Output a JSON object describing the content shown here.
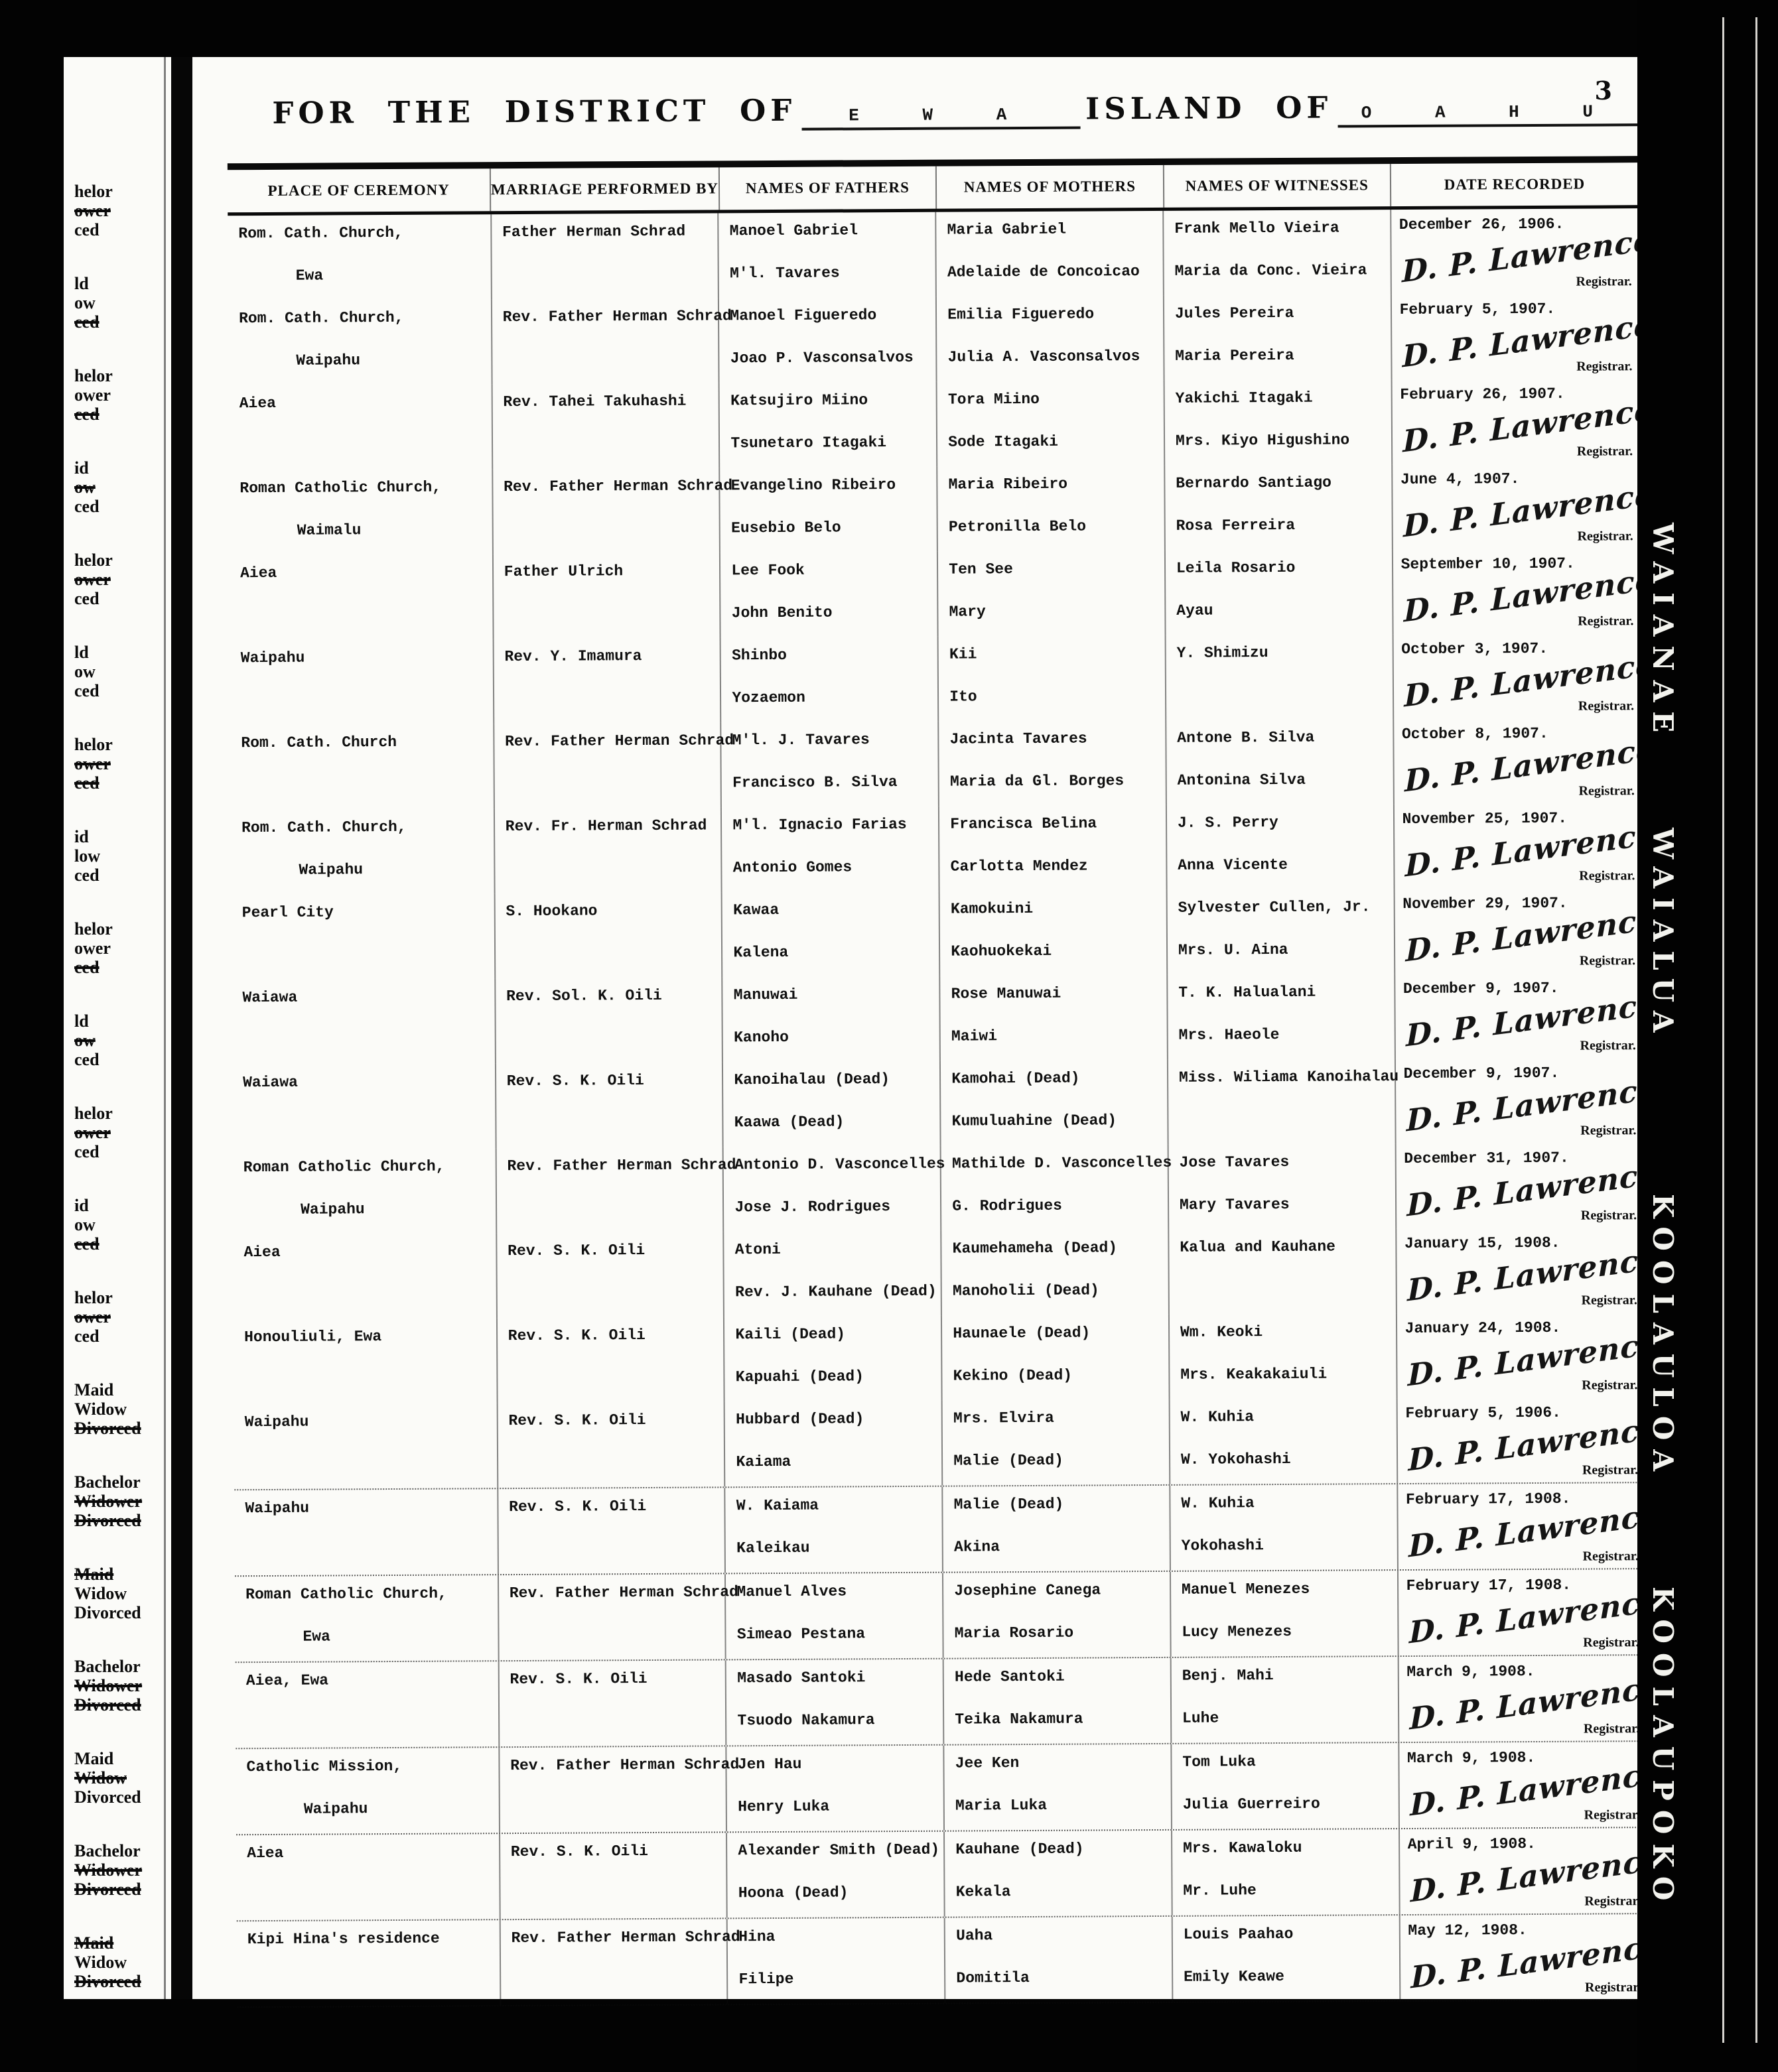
{
  "page": {
    "title_prefix": "FOR THE DISTRICT OF",
    "district": "E W A",
    "title_middle": "ISLAND OF",
    "island": "O A H U",
    "number": "3"
  },
  "signature": {
    "name": "D. P. Lawrence",
    "title": "Registrar."
  },
  "table": {
    "columns": [
      "PLACE OF CEREMONY",
      "MARRIAGE PERFORMED BY",
      "NAMES OF FATHERS",
      "NAMES OF MOTHERS",
      "NAMES OF WITNESSES",
      "DATE RECORDED"
    ],
    "rows": [
      {
        "place1": "Rom. Cath. Church,",
        "place2": "Ewa",
        "performer": "Father Herman Schrad",
        "father1": "Manoel Gabriel",
        "father2": "M'l. Tavares",
        "mother1": "Maria Gabriel",
        "mother2": "Adelaide de Concoicao",
        "witness1": "Frank Mello Vieira",
        "witness2": "Maria da Conc. Vieira",
        "date": "December 26, 1906.",
        "dotted": false
      },
      {
        "place1": "Rom. Cath. Church,",
        "place2": "Waipahu",
        "performer": "Rev. Father Herman Schrad",
        "father1": "Manoel Figueredo",
        "father2": "Joao P. Vasconsalvos",
        "mother1": "Emilia Figueredo",
        "mother2": "Julia A. Vasconsalvos",
        "witness1": "Jules Pereira",
        "witness2": "Maria Pereira",
        "date": "February 5, 1907.",
        "dotted": false
      },
      {
        "place1": "Aiea",
        "place2": "",
        "performer": "Rev. Tahei Takuhashi",
        "father1": "Katsujiro Miino",
        "father2": "Tsunetaro Itagaki",
        "mother1": "Tora Miino",
        "mother2": "Sode Itagaki",
        "witness1": "Yakichi Itagaki",
        "witness2": "Mrs. Kiyo Higushino",
        "date": "February 26, 1907.",
        "dotted": false
      },
      {
        "place1": "Roman Catholic Church,",
        "place2": "Waimalu",
        "performer": "Rev. Father Herman Schrad",
        "father1": "Evangelino Ribeiro",
        "father2": "Eusebio Belo",
        "mother1": "Maria Ribeiro",
        "mother2": "Petronilla Belo",
        "witness1": "Bernardo Santiago",
        "witness2": "Rosa Ferreira",
        "date": "June 4, 1907.",
        "dotted": false
      },
      {
        "place1": "Aiea",
        "place2": "",
        "performer": "Father Ulrich",
        "father1": "Lee Fook",
        "father2": "John Benito",
        "mother1": "Ten See",
        "mother2": "Mary",
        "witness1": "Leila Rosario",
        "witness2": "Ayau",
        "date": "September 10, 1907.",
        "dotted": false
      },
      {
        "place1": "Waipahu",
        "place2": "",
        "performer": "Rev. Y. Imamura",
        "father1": "Shinbo",
        "father2": "Yozaemon",
        "mother1": "Kii",
        "mother2": "Ito",
        "witness1": "Y. Shimizu",
        "witness2": "",
        "date": "October 3, 1907.",
        "dotted": false
      },
      {
        "place1": "Rom. Cath. Church",
        "place2": "",
        "performer": "Rev. Father Herman Schrad",
        "father1": "M'l. J. Tavares",
        "father2": "Francisco B. Silva",
        "mother1": "Jacinta Tavares",
        "mother2": "Maria da Gl. Borges",
        "witness1": "Antone B. Silva",
        "witness2": "Antonina Silva",
        "date": "October 8, 1907.",
        "dotted": false
      },
      {
        "place1": "Rom. Cath. Church,",
        "place2": "Waipahu",
        "performer": "Rev. Fr. Herman Schrad",
        "father1": "M'l. Ignacio Farias",
        "father2": "Antonio Gomes",
        "mother1": "Francisca Belina",
        "mother2": "Carlotta Mendez",
        "witness1": "J. S. Perry",
        "witness2": "Anna Vicente",
        "date": "November 25, 1907.",
        "dotted": false
      },
      {
        "place1": "Pearl City",
        "place2": "",
        "performer": "S. Hookano",
        "father1": "Kawaa",
        "father2": "Kalena",
        "mother1": "Kamokuini",
        "mother2": "Kaohuokekai",
        "witness1": "Sylvester Cullen, Jr.",
        "witness2": "Mrs. U. Aina",
        "date": "November 29, 1907.",
        "dotted": false
      },
      {
        "place1": "Waiawa",
        "place2": "",
        "performer": "Rev. Sol. K. Oili",
        "father1": "Manuwai",
        "father2": "Kanoho",
        "mother1": "Rose Manuwai",
        "mother2": "Maiwi",
        "witness1": "T. K. Halualani",
        "witness2": "Mrs. Haeole",
        "date": "December 9, 1907.",
        "dotted": false
      },
      {
        "place1": "Waiawa",
        "place2": "",
        "performer": "Rev. S. K. Oili",
        "father1": "Kanoihalau (Dead)",
        "father2": "Kaawa (Dead)",
        "mother1": "Kamohai (Dead)",
        "mother2": "Kumuluahine (Dead)",
        "witness1": "Miss. Wiliama Kanoihalau",
        "witness2": "",
        "date": "December 9, 1907.",
        "dotted": false
      },
      {
        "place1": "Roman Catholic Church,",
        "place2": "Waipahu",
        "performer": "Rev. Father Herman Schrad",
        "father1": "Antonio D. Vasconcelles",
        "father2": "Jose J. Rodrigues",
        "mother1": "Mathilde D. Vasconcelles",
        "mother2": "G. Rodrigues",
        "witness1": "Jose Tavares",
        "witness2": "Mary Tavares",
        "date": "December 31, 1907.",
        "dotted": false
      },
      {
        "place1": "Aiea",
        "place2": "",
        "performer": "Rev. S. K. Oili",
        "father1": "Atoni",
        "father2": "Rev. J. Kauhane (Dead)",
        "mother1": "Kaumehameha (Dead)",
        "mother2": "Manoholii (Dead)",
        "witness1": "Kalua and Kauhane",
        "witness2": "",
        "date": "January 15, 1908.",
        "dotted": false
      },
      {
        "place1": "Honouliuli, Ewa",
        "place2": "",
        "performer": "Rev. S. K. Oili",
        "father1": "Kaili (Dead)",
        "father2": "Kapuahi (Dead)",
        "mother1": "Haunaele (Dead)",
        "mother2": "Kekino (Dead)",
        "witness1": "Wm. Keoki",
        "witness2": "Mrs. Keakakaiuli",
        "date": "January 24, 1908.",
        "dotted": false
      },
      {
        "place1": "Waipahu",
        "place2": "",
        "performer": "Rev. S. K. Oili",
        "father1": "Hubbard (Dead)",
        "father2": "Kaiama",
        "mother1": "Mrs. Elvira",
        "mother2": "Malie (Dead)",
        "witness1": "W. Kuhia",
        "witness2": "W. Yokohashi",
        "date": "February 5, 1906.",
        "dotted": true
      },
      {
        "place1": "Waipahu",
        "place2": "",
        "performer": "Rev. S. K. Oili",
        "father1": "W. Kaiama",
        "father2": "Kaleikau",
        "mother1": "Malie (Dead)",
        "mother2": "Akina",
        "witness1": "W. Kuhia",
        "witness2": "Yokohashi",
        "date": "February 17, 1908.",
        "dotted": true
      },
      {
        "place1": "Roman Catholic Church,",
        "place2": "Ewa",
        "performer": "Rev. Father Herman Schrad",
        "father1": "Manuel Alves",
        "father2": "Simeao Pestana",
        "mother1": "Josephine Canega",
        "mother2": "Maria Rosario",
        "witness1": "Manuel Menezes",
        "witness2": "Lucy Menezes",
        "date": "February 17, 1908.",
        "dotted": true
      },
      {
        "place1": "Aiea, Ewa",
        "place2": "",
        "performer": "Rev. S. K. Oili",
        "father1": "Masado Santoki",
        "father2": "Tsuodo Nakamura",
        "mother1": "Hede Santoki",
        "mother2": "Teika Nakamura",
        "witness1": "Benj. Mahi",
        "witness2": "Luhe",
        "date": "March 9, 1908.",
        "dotted": true
      },
      {
        "place1": "Catholic Mission,",
        "place2": "Waipahu",
        "performer": "Rev. Father Herman Schrad",
        "father1": "Jen Hau",
        "father2": "Henry Luka",
        "mother1": "Jee Ken",
        "mother2": "Maria Luka",
        "witness1": "Tom Luka",
        "witness2": "Julia Guerreiro",
        "date": "March 9, 1908.",
        "dotted": true
      },
      {
        "place1": "Aiea",
        "place2": "",
        "performer": "Rev. S. K. Oili",
        "father1": "Alexander Smith (Dead)",
        "father2": "Hoona (Dead)",
        "mother1": "Kauhane (Dead)",
        "mother2": "Kekala",
        "witness1": "Mrs. Kawaloku",
        "witness2": "Mr. Luhe",
        "date": "April 9, 1908.",
        "dotted": true
      },
      {
        "place1": "Kipi Hina's residence",
        "place2": "",
        "performer": "Rev. Father Herman Schrad",
        "father1": "Hina",
        "father2": "Filipe",
        "mother1": "Uaha",
        "mother2": "Domitila",
        "witness1": "Louis Paahao",
        "witness2": "Emily Keawe",
        "date": "May 12, 1908.",
        "dotted": true
      }
    ]
  },
  "left_margin": {
    "groups": [
      {
        "lines": [
          {
            "text": "helor",
            "struck": false
          },
          {
            "text": "ower",
            "struck": true
          },
          {
            "text": "ced",
            "struck": false
          }
        ]
      },
      {
        "lines": [
          {
            "text": "ld",
            "struck": false
          },
          {
            "text": "ow",
            "struck": false
          },
          {
            "text": "ced",
            "struck": true
          }
        ]
      },
      {
        "lines": [
          {
            "text": "helor",
            "struck": false
          },
          {
            "text": "ower",
            "struck": false
          },
          {
            "text": "ced",
            "struck": true
          }
        ]
      },
      {
        "lines": [
          {
            "text": "id",
            "struck": false
          },
          {
            "text": "ow",
            "struck": true
          },
          {
            "text": "ced",
            "struck": false
          }
        ]
      },
      {
        "lines": [
          {
            "text": "helor",
            "struck": false
          },
          {
            "text": "ower",
            "struck": true
          },
          {
            "text": "ced",
            "struck": false
          }
        ]
      },
      {
        "lines": [
          {
            "text": "ld",
            "struck": false
          },
          {
            "text": "ow",
            "struck": false
          },
          {
            "text": "ced",
            "struck": false
          }
        ]
      },
      {
        "lines": [
          {
            "text": "helor",
            "struck": false
          },
          {
            "text": "ower",
            "struck": true
          },
          {
            "text": "ced",
            "struck": true
          }
        ]
      },
      {
        "lines": [
          {
            "text": "id",
            "struck": false
          },
          {
            "text": "low",
            "struck": false
          },
          {
            "text": "ced",
            "struck": false
          }
        ]
      },
      {
        "lines": [
          {
            "text": "helor",
            "struck": false
          },
          {
            "text": "ower",
            "struck": false
          },
          {
            "text": "ced",
            "struck": true
          }
        ]
      },
      {
        "lines": [
          {
            "text": "ld",
            "struck": false
          },
          {
            "text": "ow",
            "struck": true
          },
          {
            "text": "ced",
            "struck": false
          }
        ]
      },
      {
        "lines": [
          {
            "text": "helor",
            "struck": false
          },
          {
            "text": "ower",
            "struck": true
          },
          {
            "text": "ced",
            "struck": false
          }
        ]
      },
      {
        "lines": [
          {
            "text": "id",
            "struck": false
          },
          {
            "text": "ow",
            "struck": false
          },
          {
            "text": "ced",
            "struck": true
          }
        ]
      },
      {
        "lines": [
          {
            "text": "helor",
            "struck": false
          },
          {
            "text": "ower",
            "struck": true
          },
          {
            "text": "ced",
            "struck": false
          }
        ]
      },
      {
        "lines": [
          {
            "text": "Maid",
            "struck": false
          },
          {
            "text": "Widow",
            "struck": false
          },
          {
            "text": "Divorced",
            "struck": true
          }
        ]
      },
      {
        "lines": [
          {
            "text": "Bachelor",
            "struck": false
          },
          {
            "text": "Widower",
            "struck": true
          },
          {
            "text": "Divorced",
            "struck": true
          }
        ]
      },
      {
        "lines": [
          {
            "text": "Maid",
            "struck": true
          },
          {
            "text": "Widow",
            "struck": false
          },
          {
            "text": "Divorced",
            "struck": false
          }
        ]
      },
      {
        "lines": [
          {
            "text": "Bachelor",
            "struck": false
          },
          {
            "text": "Widower",
            "struck": true
          },
          {
            "text": "Divorced",
            "struck": true
          }
        ]
      },
      {
        "lines": [
          {
            "text": "Maid",
            "struck": false
          },
          {
            "text": "Widow",
            "struck": true
          },
          {
            "text": "Divorced",
            "struck": false
          }
        ]
      },
      {
        "lines": [
          {
            "text": "Bachelor",
            "struck": false
          },
          {
            "text": "Widower",
            "struck": true
          },
          {
            "text": "Divorced",
            "struck": true
          }
        ]
      },
      {
        "lines": [
          {
            "text": "Maid",
            "struck": true
          },
          {
            "text": "Widow",
            "struck": false
          },
          {
            "text": "Divorced",
            "struck": true
          }
        ]
      }
    ]
  },
  "right_margin": {
    "labels": [
      "WAIANAE",
      "WAIALUA",
      "KOOLAULOA",
      "KOOLAUPOKO"
    ]
  }
}
